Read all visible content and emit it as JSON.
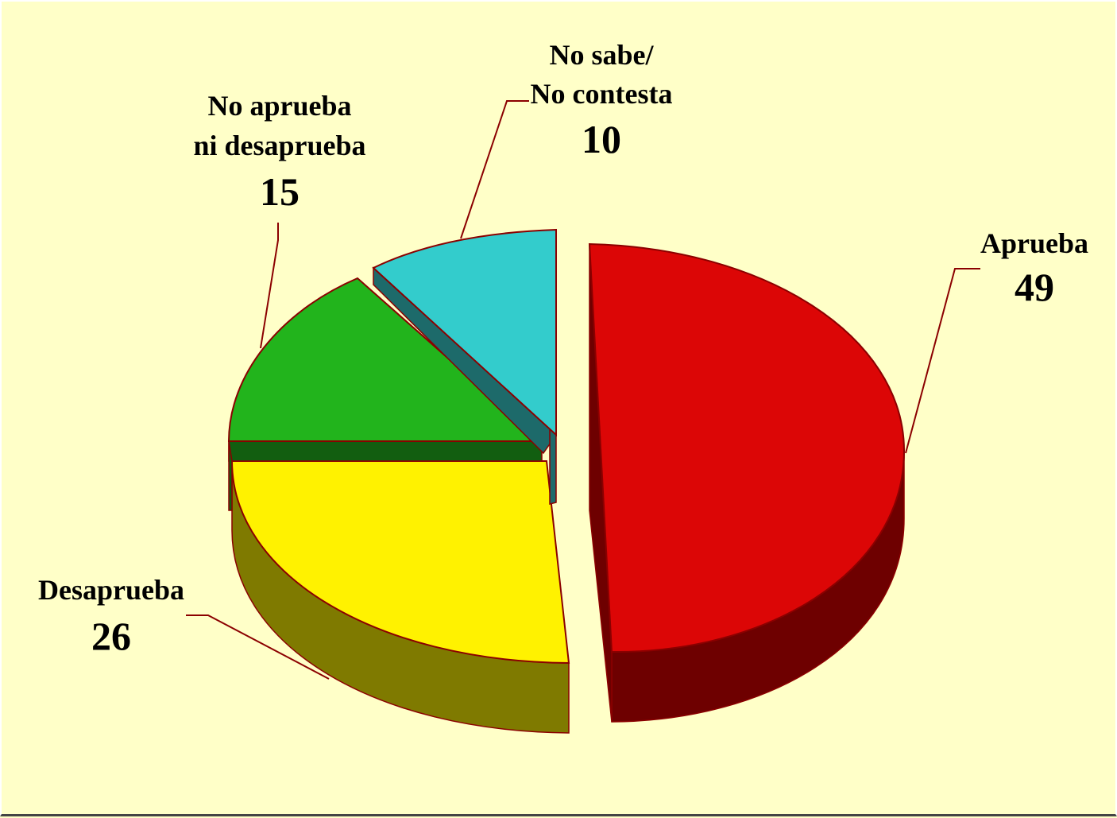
{
  "chart_data": {
    "type": "pie",
    "style": "3d-exploded",
    "slices": [
      {
        "label_lines": [
          "Aprueba"
        ],
        "value": 49,
        "color": "#dc0606",
        "side_color": "#6e0000"
      },
      {
        "label_lines": [
          "Desaprueba"
        ],
        "value": 26,
        "color": "#fff200",
        "side_color": "#7f7a00"
      },
      {
        "label_lines": [
          "No aprueba",
          "ni desaprueba"
        ],
        "value": 15,
        "color": "#22b41c",
        "side_color": "#125e10"
      },
      {
        "label_lines": [
          "No sabe/",
          "No contesta"
        ],
        "value": 10,
        "color": "#33cccc",
        "side_color": "#1d6a6a"
      }
    ],
    "outline_color": "#8b0000",
    "background": "#ffffc8"
  }
}
